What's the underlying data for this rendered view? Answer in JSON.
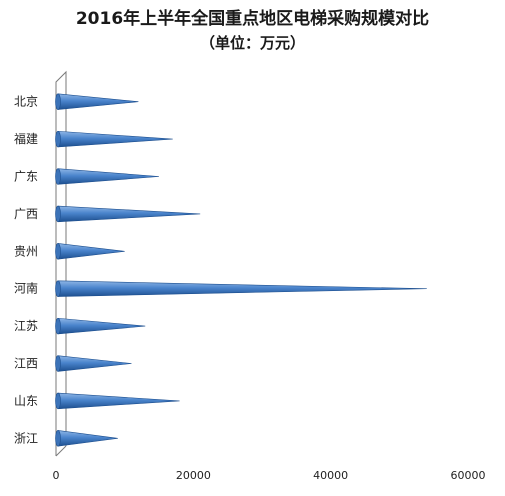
{
  "chart_data": {
    "type": "bar",
    "orientation": "horizontal",
    "title": "2016年上半年全国重点地区电梯采购规模对比",
    "subtitle": "（单位：万元）",
    "categories": [
      "北京",
      "福建",
      "广东",
      "广西",
      "贵州",
      "河南",
      "江苏",
      "江西",
      "山东",
      "浙江"
    ],
    "values": [
      12000,
      17000,
      15000,
      21000,
      10000,
      54000,
      13000,
      11000,
      18000,
      9000
    ],
    "x_ticks": [
      "0",
      "20000",
      "40000",
      "60000"
    ],
    "xlim": [
      0,
      60000
    ],
    "grid": false,
    "legend": "none",
    "bar_color": "#2f6db5",
    "bar_shape": "cone"
  }
}
